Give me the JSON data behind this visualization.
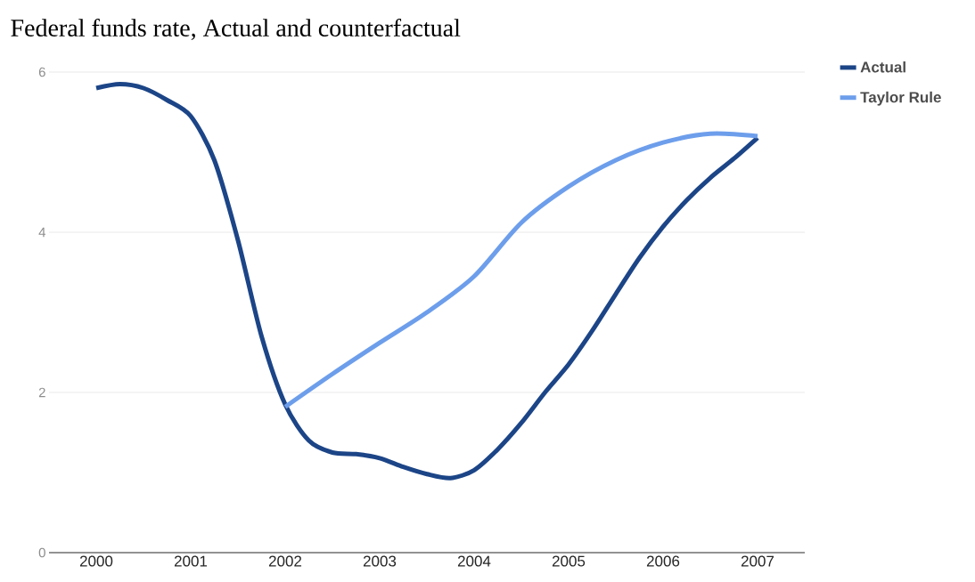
{
  "chart_data": {
    "type": "line",
    "title": "Federal funds rate, Actual and counterfactual",
    "xlim": [
      1999.5,
      2007.5
    ],
    "ylim": [
      0,
      6
    ],
    "xticks": [
      2000,
      2001,
      2002,
      2003,
      2004,
      2005,
      2006,
      2007
    ],
    "yticks": [
      0,
      2,
      4,
      6
    ],
    "grid": "y",
    "legend": "top right",
    "marker": "none",
    "line_style": "solid",
    "series": [
      {
        "name": "Actual",
        "color": "#1c4587",
        "x": [
          2000,
          2000.25,
          2000.5,
          2000.75,
          2001,
          2001.25,
          2001.5,
          2001.75,
          2002,
          2002.25,
          2002.5,
          2002.75,
          2003,
          2003.25,
          2003.5,
          2003.75,
          2004,
          2004.25,
          2004.5,
          2004.75,
          2005,
          2005.25,
          2005.5,
          2005.75,
          2006,
          2006.25,
          2006.5,
          2006.75,
          2007
        ],
        "values": [
          5.8,
          5.85,
          5.8,
          5.65,
          5.45,
          4.9,
          3.9,
          2.7,
          1.85,
          1.4,
          1.25,
          1.23,
          1.18,
          1.07,
          0.98,
          0.93,
          1.03,
          1.29,
          1.62,
          2.0,
          2.35,
          2.77,
          3.23,
          3.68,
          4.07,
          4.4,
          4.68,
          4.92,
          5.18
        ]
      },
      {
        "name": "Taylor Rule",
        "color": "#6d9eeb",
        "x": [
          2002,
          2002.5,
          2003,
          2003.5,
          2004,
          2004.5,
          2005,
          2005.5,
          2006,
          2006.5,
          2007
        ],
        "values": [
          1.82,
          2.23,
          2.62,
          3.0,
          3.45,
          4.12,
          4.57,
          4.9,
          5.12,
          5.23,
          5.2
        ]
      }
    ]
  }
}
